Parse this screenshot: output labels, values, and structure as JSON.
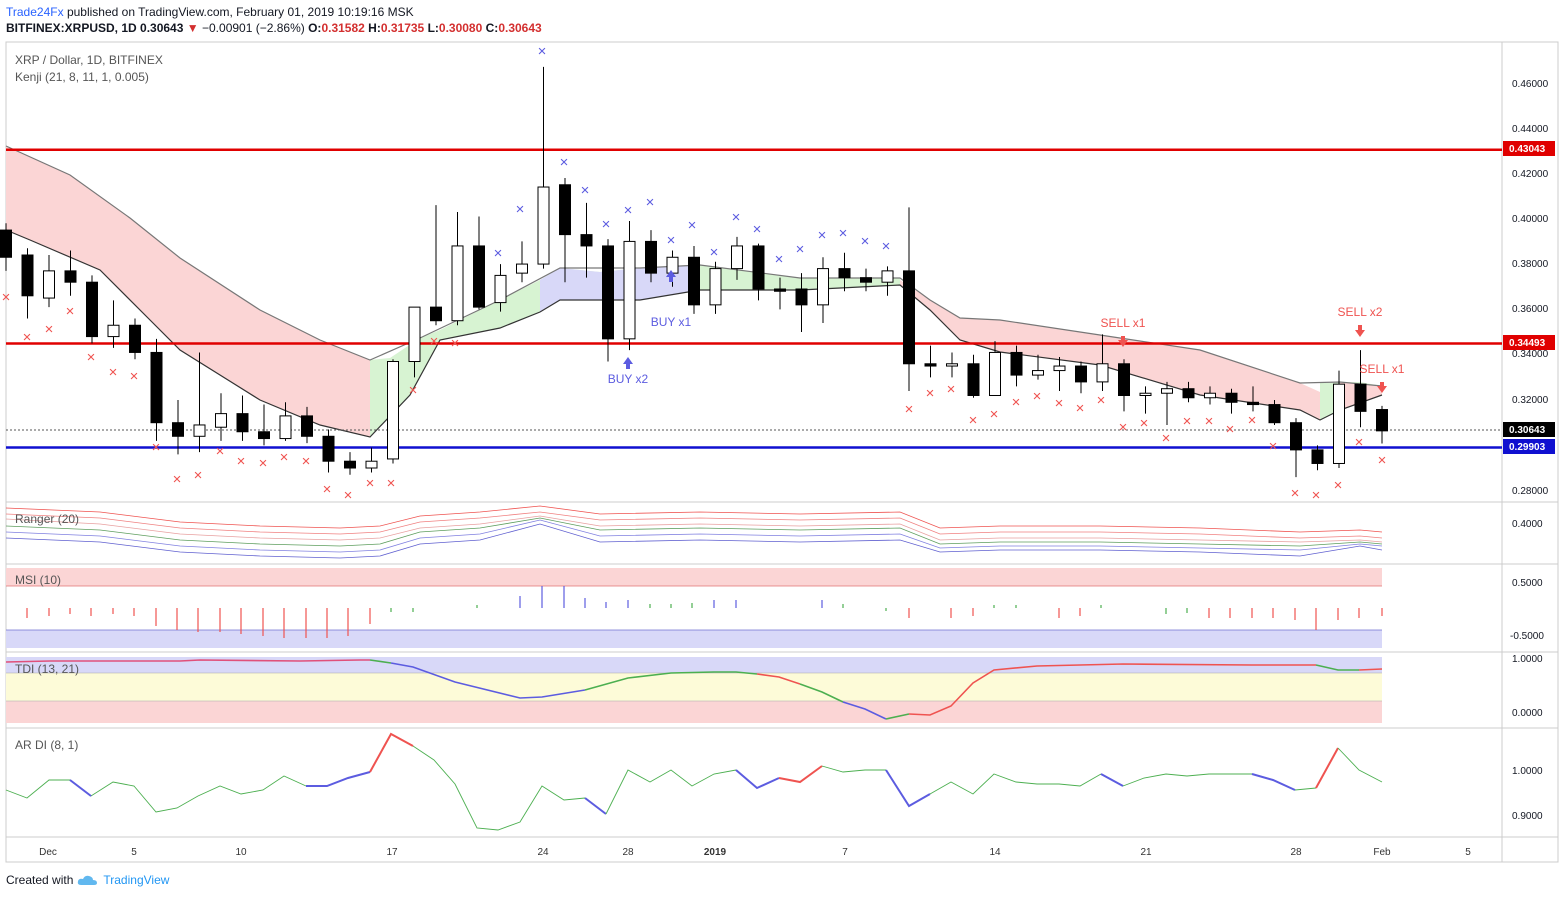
{
  "header": {
    "brand": "Trade24Fx",
    "published": "published on TradingView.com, February 01, 2019 10:19:16 MSK",
    "symbol": "BITFINEX:XRPUSD, 1D",
    "last": "0.30643",
    "change": "−0.00901 (−2.86%)",
    "o_label": "O:",
    "o": "0.31582",
    "h_label": "H:",
    "h": "0.31735",
    "l_label": "L:",
    "l": "0.30080",
    "c_label": "C:",
    "c": "0.30643"
  },
  "main_pane": {
    "title": "XRP / Dollar, 1D, BITFINEX",
    "indicator": "Kenji (21, 8, 11, 1, 0.005)"
  },
  "panes": {
    "ranger": "Ranger (20)",
    "msi": "MSI (10)",
    "tdi": "TDI (13, 21)",
    "ardi": "AR DI (8, 1)"
  },
  "price_axis": [
    "0.46000",
    "0.44000",
    "0.42000",
    "0.40000",
    "0.38000",
    "0.36000",
    "0.34000",
    "0.32000",
    "0.28000"
  ],
  "ranger_axis": [
    "0.4000"
  ],
  "msi_axis": [
    "0.5000",
    "-0.5000"
  ],
  "tdi_axis": [
    "1.0000",
    "0.0000"
  ],
  "ardi_axis": [
    "1.0000",
    "0.9000"
  ],
  "price_tags": {
    "resistance_high": "0.43043",
    "resistance_mid": "0.34493",
    "last": "0.30643",
    "support": "0.29903"
  },
  "annotations": {
    "buy1": "BUY x1",
    "buy2": "BUY x2",
    "sell1": "SELL x1",
    "sell2": "SELL x2",
    "sell3": "SELL x1"
  },
  "date_axis": [
    "Dec",
    "5",
    "10",
    "17",
    "24",
    "28",
    "2019",
    "7",
    "14",
    "21",
    "28",
    "Feb",
    "5"
  ],
  "footer": {
    "created": "Created with",
    "tv": "TradingView"
  },
  "colors": {
    "bull": "#ffffff",
    "bear": "#000000",
    "resistance": "#e00000",
    "support": "#1010d0",
    "cloud_red": "#fbd5d5",
    "cloud_green": "#d7f3d2",
    "cloud_blue": "#d8d8f8",
    "x_red": "#ef5350",
    "x_blue": "#5c5ce0"
  },
  "chart_data": {
    "type": "candlestick",
    "title": "XRP / Dollar, 1D, BITFINEX",
    "ylim": [
      0.275,
      0.478
    ],
    "hlines": [
      0.43043,
      0.34493,
      0.29903
    ],
    "candles": [
      [
        0.395,
        0.398,
        0.377,
        0.383
      ],
      [
        0.384,
        0.387,
        0.356,
        0.366
      ],
      [
        0.365,
        0.384,
        0.361,
        0.377
      ],
      [
        0.377,
        0.386,
        0.366,
        0.372
      ],
      [
        0.372,
        0.375,
        0.345,
        0.348
      ],
      [
        0.348,
        0.364,
        0.343,
        0.353
      ],
      [
        0.353,
        0.356,
        0.338,
        0.341
      ],
      [
        0.341,
        0.347,
        0.302,
        0.31
      ],
      [
        0.31,
        0.32,
        0.296,
        0.304
      ],
      [
        0.304,
        0.341,
        0.297,
        0.309
      ],
      [
        0.308,
        0.323,
        0.302,
        0.314
      ],
      [
        0.314,
        0.322,
        0.302,
        0.306
      ],
      [
        0.306,
        0.318,
        0.3,
        0.303
      ],
      [
        0.303,
        0.319,
        0.302,
        0.313
      ],
      [
        0.313,
        0.317,
        0.301,
        0.304
      ],
      [
        0.304,
        0.307,
        0.288,
        0.293
      ],
      [
        0.293,
        0.297,
        0.287,
        0.29
      ],
      [
        0.29,
        0.299,
        0.288,
        0.293
      ],
      [
        0.294,
        0.338,
        0.292,
        0.337
      ],
      [
        0.337,
        0.36,
        0.33,
        0.361
      ],
      [
        0.361,
        0.406,
        0.353,
        0.355
      ],
      [
        0.355,
        0.403,
        0.353,
        0.388
      ],
      [
        0.388,
        0.401,
        0.36,
        0.361
      ],
      [
        0.363,
        0.38,
        0.359,
        0.375
      ],
      [
        0.376,
        0.39,
        0.372,
        0.38
      ],
      [
        0.38,
        0.467,
        0.378,
        0.414
      ],
      [
        0.415,
        0.418,
        0.372,
        0.393
      ],
      [
        0.393,
        0.407,
        0.374,
        0.388
      ],
      [
        0.388,
        0.391,
        0.337,
        0.347
      ],
      [
        0.347,
        0.399,
        0.342,
        0.39
      ],
      [
        0.39,
        0.395,
        0.372,
        0.376
      ],
      [
        0.376,
        0.386,
        0.37,
        0.383
      ],
      [
        0.383,
        0.388,
        0.358,
        0.362
      ],
      [
        0.362,
        0.381,
        0.358,
        0.378
      ],
      [
        0.378,
        0.392,
        0.373,
        0.388
      ],
      [
        0.388,
        0.389,
        0.364,
        0.369
      ],
      [
        0.369,
        0.374,
        0.36,
        0.368
      ],
      [
        0.369,
        0.376,
        0.35,
        0.362
      ],
      [
        0.362,
        0.383,
        0.354,
        0.378
      ],
      [
        0.378,
        0.385,
        0.368,
        0.374
      ],
      [
        0.374,
        0.378,
        0.368,
        0.372
      ],
      [
        0.372,
        0.379,
        0.366,
        0.377
      ],
      [
        0.377,
        0.405,
        0.324,
        0.336
      ],
      [
        0.336,
        0.344,
        0.33,
        0.335
      ],
      [
        0.335,
        0.341,
        0.33,
        0.336
      ],
      [
        0.336,
        0.34,
        0.321,
        0.322
      ],
      [
        0.322,
        0.346,
        0.322,
        0.341
      ],
      [
        0.341,
        0.344,
        0.326,
        0.331
      ],
      [
        0.331,
        0.34,
        0.329,
        0.333
      ],
      [
        0.333,
        0.339,
        0.324,
        0.335
      ],
      [
        0.335,
        0.337,
        0.323,
        0.328
      ],
      [
        0.328,
        0.349,
        0.324,
        0.336
      ],
      [
        0.336,
        0.338,
        0.315,
        0.322
      ],
      [
        0.322,
        0.326,
        0.314,
        0.323
      ],
      [
        0.323,
        0.328,
        0.309,
        0.325
      ],
      [
        0.325,
        0.328,
        0.319,
        0.321
      ],
      [
        0.321,
        0.326,
        0.318,
        0.323
      ],
      [
        0.323,
        0.325,
        0.314,
        0.319
      ],
      [
        0.319,
        0.326,
        0.315,
        0.318
      ],
      [
        0.318,
        0.32,
        0.309,
        0.31
      ],
      [
        0.31,
        0.312,
        0.286,
        0.298
      ],
      [
        0.298,
        0.3,
        0.289,
        0.292
      ],
      [
        0.292,
        0.333,
        0.29,
        0.327
      ],
      [
        0.327,
        0.342,
        0.308,
        0.315
      ],
      [
        0.3158,
        0.3174,
        0.3008,
        0.3064
      ]
    ]
  }
}
